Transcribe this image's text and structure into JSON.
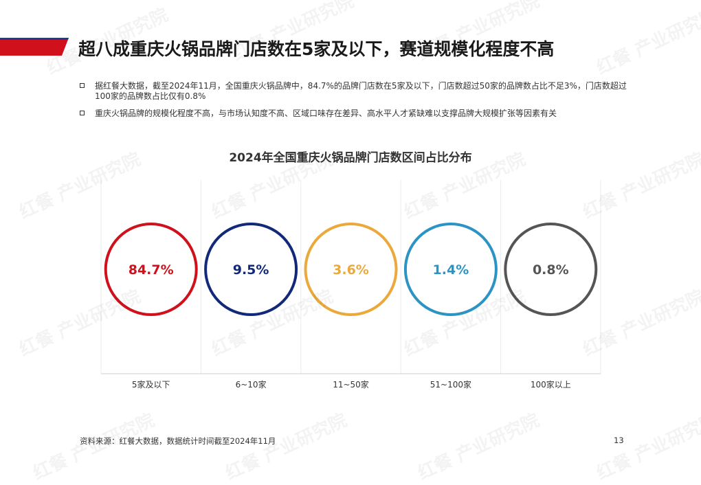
{
  "header": {
    "title": "超八成重庆火锅品牌门店数在5家及以下，赛道规模化程度不高",
    "accent_colors": [
      "#d0111c",
      "#1f3a93"
    ]
  },
  "bullets": [
    "据红餐大数据，截至2024年11月，全国重庆火锅品牌中，84.7%的品牌门店数在5家及以下，门店数超过50家的品牌数占比不足3%，门店数超过100家的品牌数占比仅有0.8%",
    "重庆火锅品牌的规模化程度不高，与市场认知度不高、区域口味存在差异、高水平人才紧缺难以支撑品牌大规模扩张等因素有关"
  ],
  "chart_data": {
    "type": "bubble-percent",
    "title": "2024年全国重庆火锅品牌门店数区间占比分布",
    "categories": [
      "5家及以下",
      "6~10家",
      "11~50家",
      "51~100家",
      "100家以上"
    ],
    "values": [
      84.7,
      9.5,
      3.6,
      1.4,
      0.8
    ],
    "labels": [
      "84.7%",
      "9.5%",
      "3.6%",
      "1.4%",
      "0.8%"
    ],
    "colors": [
      "#d0111c",
      "#12297a",
      "#eaa93a",
      "#2b94c4",
      "#555555"
    ],
    "grid": true
  },
  "footer": {
    "source": "资料来源：红餐大数据，数据统计时间截至2024年11月",
    "page_number": "13"
  },
  "watermark": "红餐 产业研究院"
}
